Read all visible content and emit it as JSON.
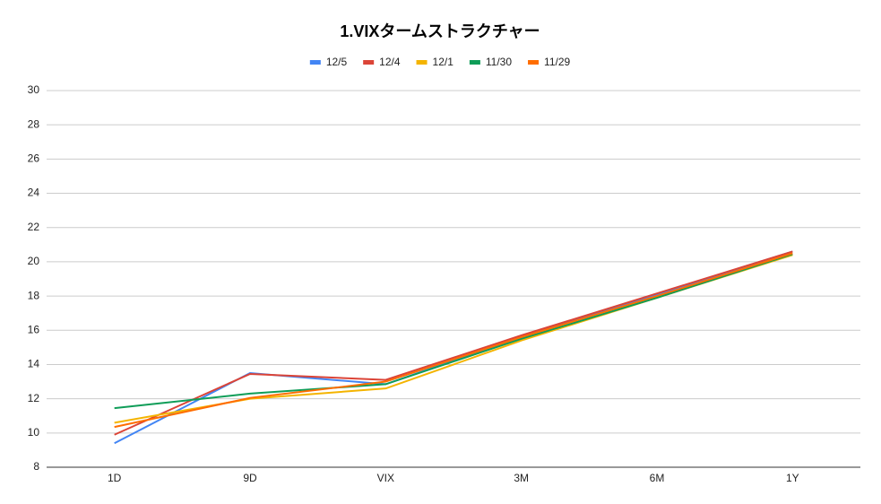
{
  "chart_data": {
    "type": "line",
    "title": "1.VIXタームストラクチャー",
    "categories": [
      "1D",
      "9D",
      "VIX",
      "3M",
      "6M",
      "1Y"
    ],
    "series": [
      {
        "name": "12/5",
        "color": "#4285f4",
        "values": [
          9.4,
          13.5,
          12.85,
          15.6,
          18.1,
          20.6
        ]
      },
      {
        "name": "12/4",
        "color": "#db4437",
        "values": [
          9.9,
          13.45,
          13.1,
          15.7,
          18.15,
          20.6
        ]
      },
      {
        "name": "12/1",
        "color": "#f4b400",
        "values": [
          10.6,
          12.0,
          12.6,
          15.4,
          17.9,
          20.4
        ]
      },
      {
        "name": "11/30",
        "color": "#0f9d58",
        "values": [
          11.45,
          12.3,
          12.85,
          15.5,
          17.9,
          20.45
        ]
      },
      {
        "name": "11/29",
        "color": "#ff6d00",
        "values": [
          10.35,
          12.05,
          13.0,
          15.6,
          18.0,
          20.5
        ]
      }
    ],
    "ylim": [
      8,
      30
    ],
    "yticks": [
      8,
      10,
      12,
      14,
      16,
      18,
      20,
      22,
      24,
      26,
      28,
      30
    ],
    "grid": true,
    "legend": "top"
  }
}
